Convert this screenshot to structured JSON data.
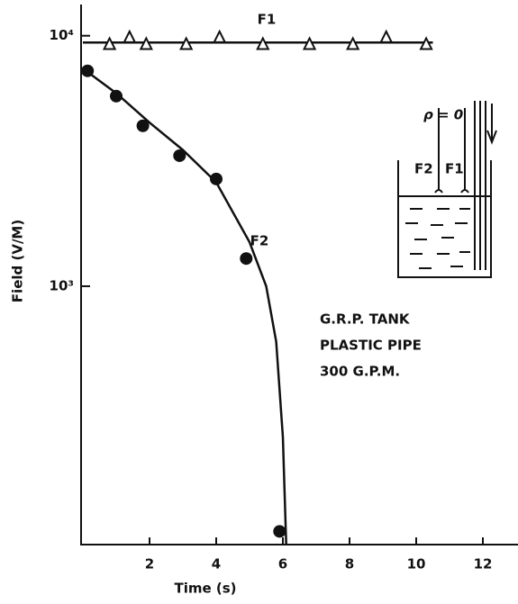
{
  "chart_data": {
    "type": "scatter",
    "xlabel": "Time (s)",
    "ylabel": "Field (V/M)",
    "xlim": [
      0,
      13
    ],
    "xticks": [
      2,
      4,
      6,
      8,
      10,
      12
    ],
    "ylim": [
      93,
      13000
    ],
    "log_y": true,
    "yticks": [
      {
        "value": 10000,
        "label": "10⁴"
      },
      {
        "value": 1000,
        "label": "10³"
      }
    ],
    "series": [
      {
        "name": "F1",
        "marker": "triangle",
        "color": "#111111",
        "x": [
          0.8,
          1.4,
          1.9,
          3.1,
          4.1,
          5.4,
          6.8,
          8.1,
          9.1,
          10.3
        ],
        "values": [
          9300,
          9900,
          9300,
          9300,
          9900,
          9300,
          9300,
          9300,
          9900,
          9300
        ],
        "curve": {
          "x": [
            0,
            10.5
          ],
          "values": [
            9400,
            9400
          ]
        }
      },
      {
        "name": "F2",
        "marker": "circle",
        "color": "#111111",
        "x": [
          0.14,
          1.0,
          1.8,
          2.9,
          4.0,
          4.9,
          5.9
        ],
        "values": [
          7240,
          5740,
          4370,
          3320,
          2680,
          1290,
          105
        ],
        "curve": {
          "x": [
            0,
            1,
            2,
            3,
            4,
            5,
            5.5,
            5.8,
            6.0,
            6.1
          ],
          "values": [
            7400,
            5900,
            4500,
            3500,
            2600,
            1500,
            1000,
            600,
            250,
            93
          ]
        }
      }
    ],
    "annotations": [
      "G.R.P. TANK",
      "PLASTIC PIPE",
      "300 G.P.M."
    ],
    "diagram": {
      "rho": "ρ = 0",
      "probe_labels": [
        "F2",
        "F1"
      ]
    }
  }
}
